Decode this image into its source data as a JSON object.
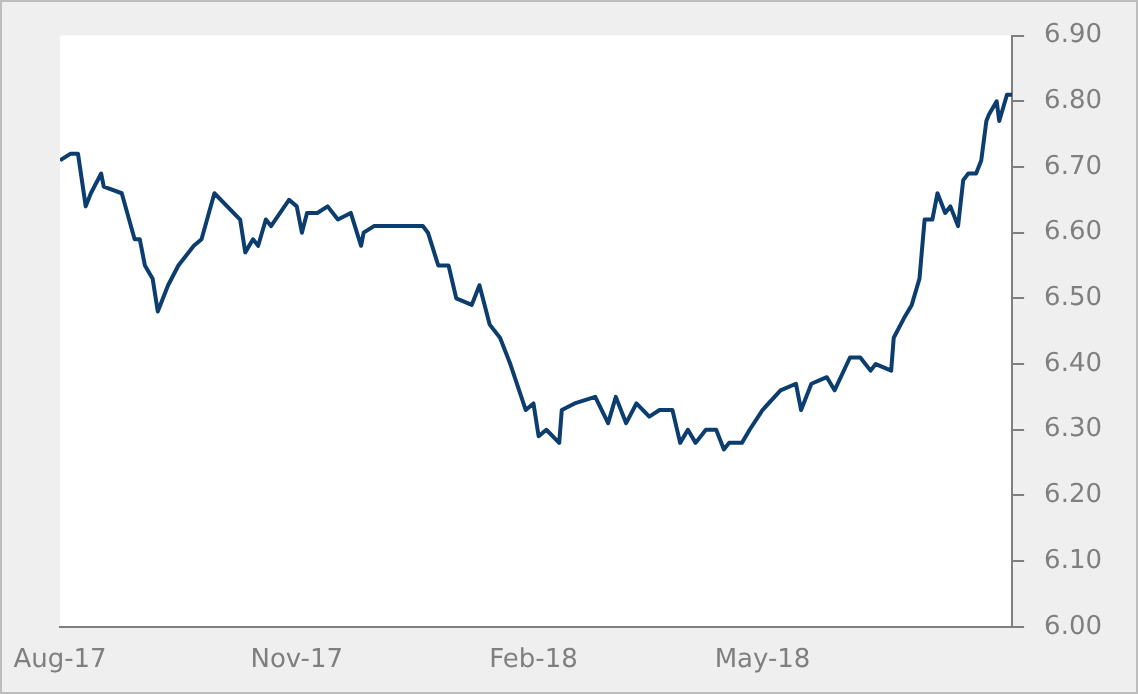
{
  "chart_data": {
    "type": "line",
    "x": [
      "2017-08-01",
      "2017-08-05",
      "2017-08-08",
      "2017-08-11",
      "2017-08-13",
      "2017-08-17",
      "2017-08-18",
      "2017-08-25",
      "2017-08-30",
      "2017-09-01",
      "2017-09-03",
      "2017-09-06",
      "2017-09-08",
      "2017-09-12",
      "2017-09-16",
      "2017-09-22",
      "2017-09-25",
      "2017-09-30",
      "2017-10-10",
      "2017-10-12",
      "2017-10-15",
      "2017-10-17",
      "2017-10-20",
      "2017-10-22",
      "2017-10-29",
      "2017-11-01",
      "2017-11-03",
      "2017-11-05",
      "2017-11-09",
      "2017-11-13",
      "2017-11-17",
      "2017-11-22",
      "2017-11-26",
      "2017-11-27",
      "2017-12-01",
      "2017-12-08",
      "2017-12-16",
      "2017-12-20",
      "2017-12-22",
      "2017-12-26",
      "2017-12-30",
      "2018-01-02",
      "2018-01-08",
      "2018-01-11",
      "2018-01-15",
      "2018-01-19",
      "2018-01-23",
      "2018-01-29",
      "2018-02-01",
      "2018-02-03",
      "2018-02-06",
      "2018-02-11",
      "2018-02-12",
      "2018-02-17",
      "2018-02-25",
      "2018-03-02",
      "2018-03-05",
      "2018-03-09",
      "2018-03-13",
      "2018-03-18",
      "2018-03-22",
      "2018-03-27",
      "2018-03-30",
      "2018-04-02",
      "2018-04-05",
      "2018-04-09",
      "2018-04-13",
      "2018-04-16",
      "2018-04-18",
      "2018-04-23",
      "2018-04-26",
      "2018-05-01",
      "2018-05-08",
      "2018-05-14",
      "2018-05-16",
      "2018-05-20",
      "2018-05-26",
      "2018-05-29",
      "2018-06-04",
      "2018-06-08",
      "2018-06-12",
      "2018-06-14",
      "2018-06-20",
      "2018-06-21",
      "2018-06-25",
      "2018-06-28",
      "2018-07-01",
      "2018-07-03",
      "2018-07-06",
      "2018-07-08",
      "2018-07-11",
      "2018-07-13",
      "2018-07-16",
      "2018-07-18",
      "2018-07-20",
      "2018-07-23",
      "2018-07-25",
      "2018-07-27",
      "2018-07-28",
      "2018-07-31",
      "2018-08-01",
      "2018-08-04",
      "2018-08-06"
    ],
    "series": [
      {
        "color": "#0b3d6e",
        "values": [
          6.71,
          6.72,
          6.72,
          6.64,
          6.66,
          6.69,
          6.67,
          6.66,
          6.59,
          6.59,
          6.55,
          6.53,
          6.48,
          6.52,
          6.55,
          6.58,
          6.59,
          6.66,
          6.62,
          6.57,
          6.59,
          6.58,
          6.62,
          6.61,
          6.65,
          6.64,
          6.6,
          6.63,
          6.63,
          6.64,
          6.62,
          6.63,
          6.58,
          6.6,
          6.61,
          6.61,
          6.61,
          6.61,
          6.6,
          6.55,
          6.55,
          6.5,
          6.49,
          6.52,
          6.46,
          6.44,
          6.4,
          6.33,
          6.34,
          6.29,
          6.3,
          6.28,
          6.33,
          6.34,
          6.35,
          6.31,
          6.35,
          6.31,
          6.34,
          6.32,
          6.33,
          6.33,
          6.28,
          6.3,
          6.28,
          6.3,
          6.3,
          6.27,
          6.28,
          6.28,
          6.3,
          6.33,
          6.36,
          6.37,
          6.33,
          6.37,
          6.38,
          6.36,
          6.41,
          6.41,
          6.39,
          6.4,
          6.39,
          6.44,
          6.47,
          6.49,
          6.53,
          6.62,
          6.62,
          6.66,
          6.63,
          6.64,
          6.61,
          6.68,
          6.69,
          6.69,
          6.71,
          6.77,
          6.78,
          6.8,
          6.77,
          6.81,
          6.81
        ]
      }
    ],
    "xlim": [
      "2017-08-01",
      "2018-08-06"
    ],
    "xticks": [
      {
        "value": "2017-08-01",
        "label": "Aug-17"
      },
      {
        "value": "2017-11-01",
        "label": "Nov-17"
      },
      {
        "value": "2018-02-01",
        "label": "Feb-18"
      },
      {
        "value": "2018-05-01",
        "label": "May-18"
      }
    ],
    "ylim": [
      6.0,
      6.9
    ],
    "yticks": [
      {
        "value": 6.0,
        "label": "6.00"
      },
      {
        "value": 6.1,
        "label": "6.10"
      },
      {
        "value": 6.2,
        "label": "6.20"
      },
      {
        "value": 6.3,
        "label": "6.30"
      },
      {
        "value": 6.4,
        "label": "6.40"
      },
      {
        "value": 6.5,
        "label": "6.50"
      },
      {
        "value": 6.6,
        "label": "6.60"
      },
      {
        "value": 6.7,
        "label": "6.70"
      },
      {
        "value": 6.8,
        "label": "6.80"
      },
      {
        "value": 6.9,
        "label": "6.90"
      }
    ],
    "grid": false,
    "legend": false,
    "marker": "none",
    "line_style": "solid"
  }
}
